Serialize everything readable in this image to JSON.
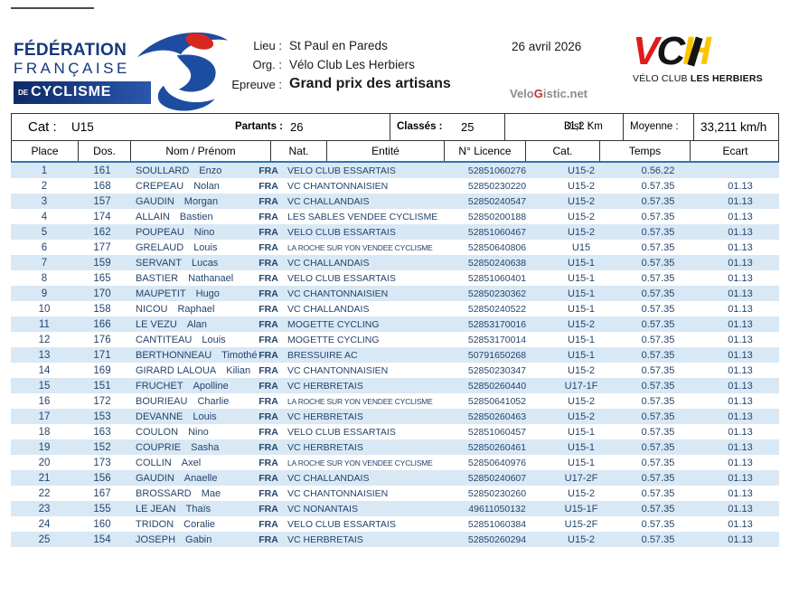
{
  "colors": {
    "row_alt": "#d9e8f5",
    "header_rule": "#2e75b6",
    "ffc_navy": "#16377c",
    "vch_red": "#e2191f",
    "vch_yellow": "#ffc400",
    "watermark_accent": "#d22d25"
  },
  "header": {
    "ffc_logo": {
      "line1": "FÉDÉRATION",
      "line2": "FRANÇAISE",
      "line3_prefix": "DE",
      "line3": "CYCLISME"
    },
    "event": {
      "lieu_label": "Lieu :",
      "lieu_value": "St Paul en Pareds",
      "org_label": "Org. :",
      "org_value": "Vélo Club Les Herbiers",
      "epreuve_label": "Epreuve :",
      "epreuve_value": "Grand prix des artisans"
    },
    "date": "26 avril 2026",
    "watermark": {
      "pre": "Velo",
      "accent": "G",
      "post": "istic.net"
    },
    "vch_logo": {
      "v": "V",
      "c": "C",
      "h": "H",
      "subtitle_light": "VÉLO CLUB ",
      "subtitle_bold": "LES HERBIERS"
    }
  },
  "summary": {
    "cat_label": "Cat :",
    "cat_value": "U15",
    "partants_label": "Partants :",
    "partants_value": "26",
    "classes_label": "Classés :",
    "classes_value": "25",
    "dist_label": "Dist. :",
    "dist_value": "31,2 Km",
    "moyenne_label": "Moyenne :",
    "moyenne_value": "33,211 km/h"
  },
  "table": {
    "headers": [
      "Place",
      "Dos.",
      "Nom / Prénom",
      "Nat.",
      "Entité",
      "N° Licence",
      "Cat.",
      "Temps",
      "Ecart"
    ],
    "rows": [
      {
        "place": "1",
        "dos": "161",
        "last": "SOULLARD",
        "first": "Enzo",
        "nat": "FRA",
        "team": "VELO CLUB ESSARTAIS",
        "licence": "52851060276",
        "cat": "U15-2",
        "time": "0.56.22",
        "gap": ""
      },
      {
        "place": "2",
        "dos": "168",
        "last": "CREPEAU",
        "first": "Nolan",
        "nat": "FRA",
        "team": "VC CHANTONNAISIEN",
        "licence": "52850230220",
        "cat": "U15-2",
        "time": "0.57.35",
        "gap": "01.13"
      },
      {
        "place": "3",
        "dos": "157",
        "last": "GAUDIN",
        "first": "Morgan",
        "nat": "FRA",
        "team": "VC CHALLANDAIS",
        "licence": "52850240547",
        "cat": "U15-2",
        "time": "0.57.35",
        "gap": "01.13"
      },
      {
        "place": "4",
        "dos": "174",
        "last": "ALLAIN",
        "first": "Bastien",
        "nat": "FRA",
        "team": "LES SABLES VENDEE CYCLISME",
        "licence": "52850200188",
        "cat": "U15-2",
        "time": "0.57.35",
        "gap": "01.13"
      },
      {
        "place": "5",
        "dos": "162",
        "last": "POUPEAU",
        "first": "Nino",
        "nat": "FRA",
        "team": "VELO CLUB ESSARTAIS",
        "licence": "52851060467",
        "cat": "U15-2",
        "time": "0.57.35",
        "gap": "01.13"
      },
      {
        "place": "6",
        "dos": "177",
        "last": "GRELAUD",
        "first": "Louis",
        "nat": "FRA",
        "team": "LA ROCHE SUR YON VENDEE CYCLISME",
        "licence": "52850640806",
        "cat": "U15",
        "time": "0.57.35",
        "gap": "01.13"
      },
      {
        "place": "7",
        "dos": "159",
        "last": "SERVANT",
        "first": "Lucas",
        "nat": "FRA",
        "team": "VC CHALLANDAIS",
        "licence": "52850240638",
        "cat": "U15-1",
        "time": "0.57.35",
        "gap": "01.13"
      },
      {
        "place": "8",
        "dos": "165",
        "last": "BASTIER",
        "first": "Nathanael",
        "nat": "FRA",
        "team": "VELO CLUB ESSARTAIS",
        "licence": "52851060401",
        "cat": "U15-1",
        "time": "0.57.35",
        "gap": "01.13"
      },
      {
        "place": "9",
        "dos": "170",
        "last": "MAUPETIT",
        "first": "Hugo",
        "nat": "FRA",
        "team": "VC CHANTONNAISIEN",
        "licence": "52850230362",
        "cat": "U15-1",
        "time": "0.57.35",
        "gap": "01.13"
      },
      {
        "place": "10",
        "dos": "158",
        "last": "NICOU",
        "first": "Raphael",
        "nat": "FRA",
        "team": "VC CHALLANDAIS",
        "licence": "52850240522",
        "cat": "U15-1",
        "time": "0.57.35",
        "gap": "01.13"
      },
      {
        "place": "11",
        "dos": "166",
        "last": "LE VEZU",
        "first": "Alan",
        "nat": "FRA",
        "team": "MOGETTE CYCLING",
        "licence": "52853170016",
        "cat": "U15-2",
        "time": "0.57.35",
        "gap": "01.13"
      },
      {
        "place": "12",
        "dos": "176",
        "last": "CANTITEAU",
        "first": "Louis",
        "nat": "FRA",
        "team": "MOGETTE CYCLING",
        "licence": "52853170014",
        "cat": "U15-1",
        "time": "0.57.35",
        "gap": "01.13"
      },
      {
        "place": "13",
        "dos": "171",
        "last": "BERTHONNEAU",
        "first": "Timothé",
        "nat": "FRA",
        "team": "BRESSUIRE AC",
        "licence": "50791650268",
        "cat": "U15-1",
        "time": "0.57.35",
        "gap": "01.13"
      },
      {
        "place": "14",
        "dos": "169",
        "last": "GIRARD LALOUA",
        "first": "Kilian",
        "nat": "FRA",
        "team": "VC CHANTONNAISIEN",
        "licence": "52850230347",
        "cat": "U15-2",
        "time": "0.57.35",
        "gap": "01.13"
      },
      {
        "place": "15",
        "dos": "151",
        "last": "FRUCHET",
        "first": "Apolline",
        "nat": "FRA",
        "team": "VC HERBRETAIS",
        "licence": "52850260440",
        "cat": "U17-1F",
        "time": "0.57.35",
        "gap": "01.13"
      },
      {
        "place": "16",
        "dos": "172",
        "last": "BOURIEAU",
        "first": "Charlie",
        "nat": "FRA",
        "team": "LA ROCHE SUR YON VENDEE CYCLISME",
        "licence": "52850641052",
        "cat": "U15-2",
        "time": "0.57.35",
        "gap": "01.13"
      },
      {
        "place": "17",
        "dos": "153",
        "last": "DEVANNE",
        "first": "Louis",
        "nat": "FRA",
        "team": "VC HERBRETAIS",
        "licence": "52850260463",
        "cat": "U15-2",
        "time": "0.57.35",
        "gap": "01.13"
      },
      {
        "place": "18",
        "dos": "163",
        "last": "COULON",
        "first": "Nino",
        "nat": "FRA",
        "team": "VELO CLUB ESSARTAIS",
        "licence": "52851060457",
        "cat": "U15-1",
        "time": "0.57.35",
        "gap": "01.13"
      },
      {
        "place": "19",
        "dos": "152",
        "last": "COUPRIE",
        "first": "Sasha",
        "nat": "FRA",
        "team": "VC HERBRETAIS",
        "licence": "52850260461",
        "cat": "U15-1",
        "time": "0.57.35",
        "gap": "01.13"
      },
      {
        "place": "20",
        "dos": "173",
        "last": "COLLIN",
        "first": "Axel",
        "nat": "FRA",
        "team": "LA ROCHE SUR YON VENDEE CYCLISME",
        "licence": "52850640976",
        "cat": "U15-1",
        "time": "0.57.35",
        "gap": "01.13"
      },
      {
        "place": "21",
        "dos": "156",
        "last": "GAUDIN",
        "first": "Anaelle",
        "nat": "FRA",
        "team": "VC CHALLANDAIS",
        "licence": "52850240607",
        "cat": "U17-2F",
        "time": "0.57.35",
        "gap": "01.13"
      },
      {
        "place": "22",
        "dos": "167",
        "last": "BROSSARD",
        "first": "Mae",
        "nat": "FRA",
        "team": "VC CHANTONNAISIEN",
        "licence": "52850230260",
        "cat": "U15-2",
        "time": "0.57.35",
        "gap": "01.13"
      },
      {
        "place": "23",
        "dos": "155",
        "last": "LE JEAN",
        "first": "Thaïs",
        "nat": "FRA",
        "team": "VC NONANTAIS",
        "licence": "49611050132",
        "cat": "U15-1F",
        "time": "0.57.35",
        "gap": "01.13"
      },
      {
        "place": "24",
        "dos": "160",
        "last": "TRIDON",
        "first": "Coralie",
        "nat": "FRA",
        "team": "VELO CLUB ESSARTAIS",
        "licence": "52851060384",
        "cat": "U15-2F",
        "time": "0.57.35",
        "gap": "01.13"
      },
      {
        "place": "25",
        "dos": "154",
        "last": "JOSEPH",
        "first": "Gabin",
        "nat": "FRA",
        "team": "VC HERBRETAIS",
        "licence": "52850260294",
        "cat": "U15-2",
        "time": "0.57.35",
        "gap": "01.13"
      }
    ]
  }
}
